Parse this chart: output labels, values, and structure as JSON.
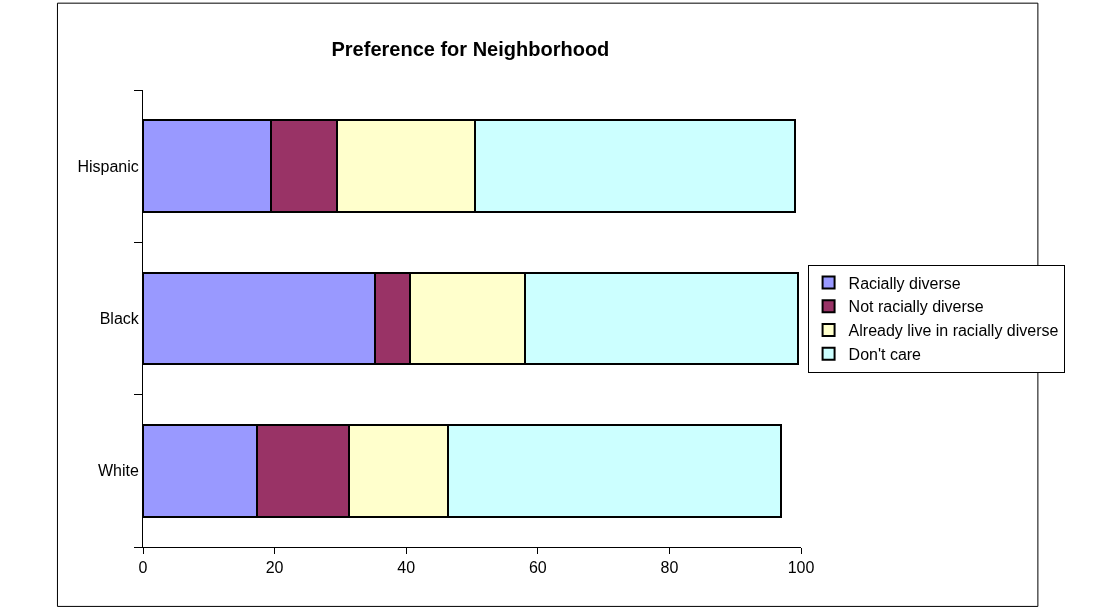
{
  "chart_data": {
    "type": "bar",
    "title": "Preference for Neighborhood",
    "orientation": "horizontal",
    "stacked": true,
    "categories": [
      "Hispanic",
      "Black",
      "White"
    ],
    "series": [
      {
        "name": "Racially diverse",
        "color": "#9999ff",
        "values": [
          19.5,
          35.3,
          17.3
        ]
      },
      {
        "name": "Not racially diverse",
        "color": "#993366",
        "values": [
          10.0,
          5.3,
          14.0
        ]
      },
      {
        "name": "Already live in racially diverse",
        "color": "#ffffcc",
        "values": [
          21.0,
          17.5,
          15.0
        ]
      },
      {
        "name": "Don't care",
        "color": "#ccffff",
        "values": [
          48.6,
          41.5,
          50.6
        ]
      }
    ],
    "xlim": [
      0,
      100
    ],
    "xticks": [
      0,
      20,
      40,
      60,
      80,
      100
    ],
    "grid": false,
    "legend": "right"
  }
}
